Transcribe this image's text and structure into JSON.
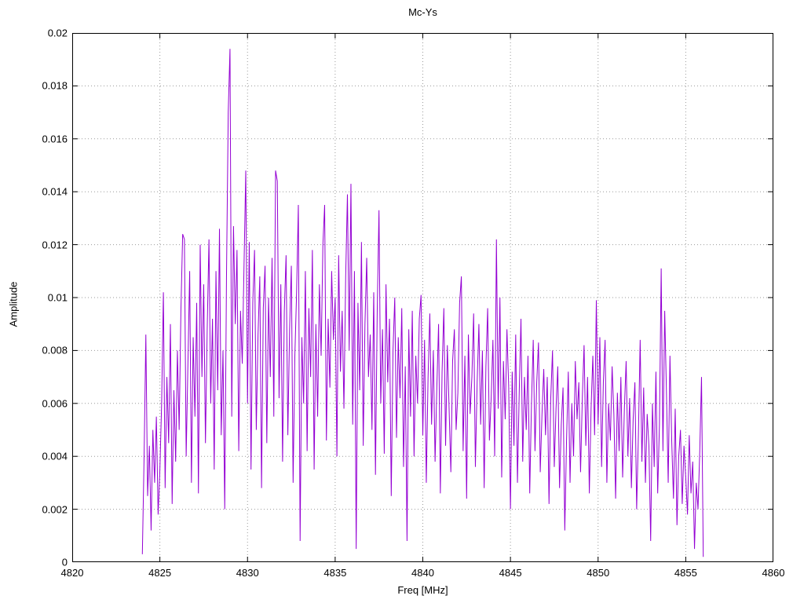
{
  "chart_data": {
    "type": "line",
    "title": "Mc-Ys",
    "xlabel": "Freq [MHz]",
    "ylabel": "Amplitude",
    "xlim": [
      4820,
      4860
    ],
    "ylim": [
      0,
      0.02
    ],
    "x_ticks": [
      4820,
      4825,
      4830,
      4835,
      4840,
      4845,
      4850,
      4855,
      4860
    ],
    "y_ticks": [
      0,
      0.002,
      0.004,
      0.006,
      0.008,
      0.01,
      0.012,
      0.014,
      0.016,
      0.018,
      0.02
    ],
    "y_tick_labels": [
      "0",
      "0.002",
      "0.004",
      "0.006",
      "0.008",
      "0.01",
      "0.012",
      "0.014",
      "0.016",
      "0.018",
      "0.02"
    ],
    "grid": true,
    "legend": "none",
    "line_color": "#9400d3",
    "series": [
      {
        "name": "Mc-Ys",
        "x_start": 4824.0,
        "x_step": 0.1,
        "value_scale": 0.0001,
        "values": [
          3,
          40,
          86,
          25,
          44,
          12,
          50,
          30,
          55,
          18,
          35,
          60,
          102,
          28,
          70,
          45,
          90,
          22,
          65,
          38,
          80,
          50,
          95,
          124,
          122,
          40,
          75,
          110,
          30,
          85,
          55,
          98,
          26,
          120,
          70,
          105,
          45,
          88,
          122,
          60,
          92,
          35,
          110,
          65,
          126,
          48,
          80,
          20,
          108,
          170,
          194,
          55,
          127,
          90,
          118,
          42,
          95,
          75,
          112,
          148,
          60,
          121,
          35,
          98,
          118,
          50,
          86,
          108,
          28,
          96,
          112,
          45,
          100,
          70,
          115,
          55,
          148,
          144,
          62,
          105,
          38,
          95,
          116,
          48,
          88,
          112,
          30,
          78,
          102,
          135,
          8,
          85,
          60,
          110,
          42,
          96,
          70,
          118,
          35,
          90,
          55,
          105,
          78,
          120,
          135,
          46,
          92,
          66,
          110,
          84,
          100,
          40,
          116,
          72,
          95,
          58,
          108,
          139,
          80,
          143,
          52,
          110,
          5,
          98,
          65,
          121,
          44,
          90,
          115,
          70,
          86,
          50,
          102,
          33,
          95,
          133,
          60,
          88,
          41,
          105,
          68,
          92,
          25,
          80,
          100,
          47,
          85,
          62,
          96,
          36,
          74,
          8,
          88,
          55,
          95,
          40,
          78,
          60,
          92,
          101,
          48,
          84,
          30,
          70,
          94,
          52,
          80,
          38,
          66,
          90,
          26,
          72,
          96,
          44,
          82,
          58,
          34,
          76,
          88,
          50,
          64,
          98,
          108,
          42,
          78,
          24,
          86,
          56,
          70,
          94,
          36,
          68,
          90,
          52,
          80,
          28,
          74,
          96,
          46,
          62,
          84,
          40,
          122,
          58,
          100,
          32,
          76,
          54,
          88,
          66,
          20,
          72,
          44,
          86,
          30,
          64,
          92,
          38,
          70,
          50,
          78,
          26,
          60,
          84,
          42,
          68,
          83,
          34,
          56,
          73,
          48,
          70,
          22,
          62,
          80,
          36,
          58,
          74,
          28,
          52,
          66,
          12,
          46,
          72,
          30,
          60,
          40,
          76,
          54,
          68,
          34,
          62,
          82,
          44,
          70,
          26,
          58,
          78,
          48,
          99,
          52,
          85,
          36,
          68,
          84,
          30,
          60,
          46,
          74,
          56,
          24,
          64,
          42,
          70,
          32,
          58,
          76,
          40,
          62,
          28,
          54,
          68,
          20,
          48,
          84,
          38,
          66,
          30,
          56,
          44,
          8,
          60,
          36,
          72,
          26,
          52,
          111,
          42,
          95,
          64,
          30,
          78,
          46,
          24,
          58,
          14,
          40,
          50,
          22,
          44,
          32,
          18,
          48,
          26,
          38,
          5,
          30,
          20,
          42,
          70,
          2
        ]
      }
    ]
  }
}
